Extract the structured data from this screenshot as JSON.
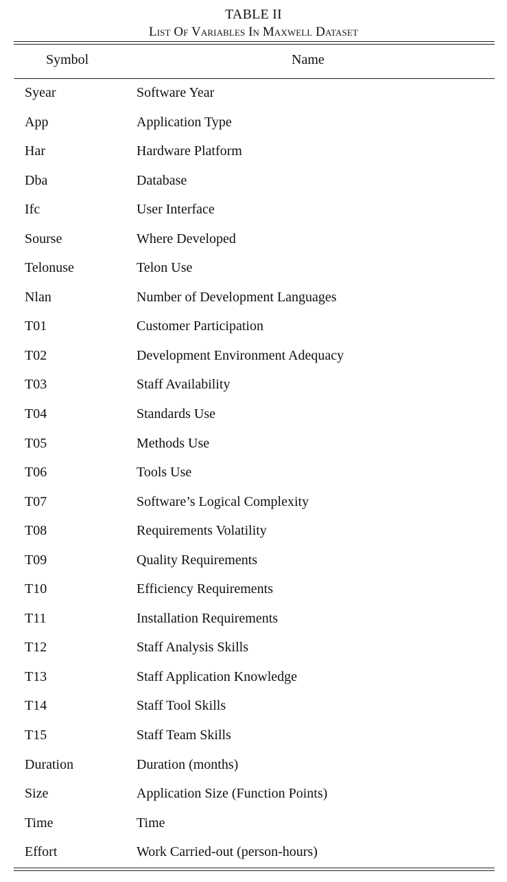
{
  "table": {
    "label": "TABLE II",
    "caption": "List Of Variables In Maxwell Dataset",
    "headers": {
      "symbol": "Symbol",
      "name": "Name"
    },
    "rows": [
      {
        "symbol": "Syear",
        "name": "Software Year"
      },
      {
        "symbol": "App",
        "name": "Application Type"
      },
      {
        "symbol": "Har",
        "name": "Hardware Platform"
      },
      {
        "symbol": "Dba",
        "name": "Database"
      },
      {
        "symbol": "Ifc",
        "name": "User Interface"
      },
      {
        "symbol": "Sourse",
        "name": "Where Developed"
      },
      {
        "symbol": "Telonuse",
        "name": "Telon Use"
      },
      {
        "symbol": "Nlan",
        "name": "Number of Development Languages"
      },
      {
        "symbol": "T01",
        "name": "Customer Participation"
      },
      {
        "symbol": "T02",
        "name": "Development Environment Adequacy"
      },
      {
        "symbol": "T03",
        "name": "Staff Availability"
      },
      {
        "symbol": "T04",
        "name": "Standards Use"
      },
      {
        "symbol": "T05",
        "name": "Methods Use"
      },
      {
        "symbol": "T06",
        "name": "Tools Use"
      },
      {
        "symbol": "T07",
        "name": "Software’s Logical Complexity"
      },
      {
        "symbol": "T08",
        "name": "Requirements Volatility"
      },
      {
        "symbol": "T09",
        "name": "Quality Requirements"
      },
      {
        "symbol": "T10",
        "name": "Efficiency Requirements"
      },
      {
        "symbol": "T11",
        "name": "Installation Requirements"
      },
      {
        "symbol": "T12",
        "name": "Staff Analysis Skills"
      },
      {
        "symbol": "T13",
        "name": "Staff Application Knowledge"
      },
      {
        "symbol": "T14",
        "name": "Staff Tool Skills"
      },
      {
        "symbol": "T15",
        "name": "Staff Team Skills"
      },
      {
        "symbol": "Duration",
        "name": "Duration (months)"
      },
      {
        "symbol": "Size",
        "name": "Application Size (Function Points)"
      },
      {
        "symbol": "Time",
        "name": "Time"
      },
      {
        "symbol": "Effort",
        "name": "Work Carried-out (person-hours)"
      }
    ]
  }
}
